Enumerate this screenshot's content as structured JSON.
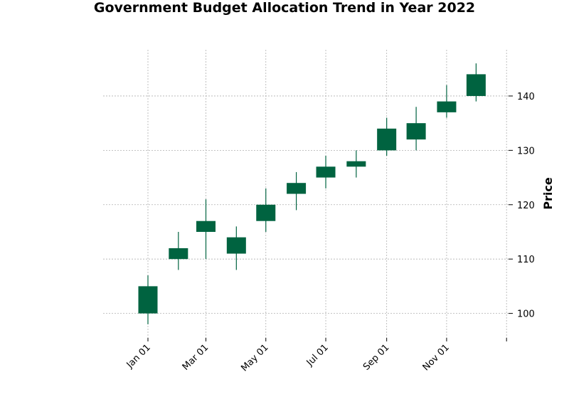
{
  "chart_data": {
    "type": "candlestick",
    "title": "Government Budget Allocation Trend in Year 2022",
    "xlabel": "",
    "ylabel": "Price",
    "grid": true,
    "ylim": [
      95.5,
      148.5
    ],
    "x_tick_labels": [
      "Jan 01",
      "Mar 01",
      "May 01",
      "Jul 01",
      "Sep 01",
      "Nov 01",
      ""
    ],
    "y_ticks": [
      100,
      110,
      120,
      130,
      140
    ],
    "candle_color": "#006340",
    "candles": [
      {
        "date": "2022-01-01",
        "open": 100,
        "high": 107,
        "low": 98,
        "close": 105
      },
      {
        "date": "2022-02-01",
        "open": 110,
        "high": 115,
        "low": 108,
        "close": 112
      },
      {
        "date": "2022-03-01",
        "open": 115,
        "high": 121,
        "low": 110,
        "close": 117
      },
      {
        "date": "2022-04-01",
        "open": 111,
        "high": 116,
        "low": 108,
        "close": 114
      },
      {
        "date": "2022-05-01",
        "open": 117,
        "high": 123,
        "low": 115,
        "close": 120
      },
      {
        "date": "2022-06-01",
        "open": 122,
        "high": 126,
        "low": 119,
        "close": 124
      },
      {
        "date": "2022-07-01",
        "open": 125,
        "high": 129,
        "low": 123,
        "close": 127
      },
      {
        "date": "2022-08-01",
        "open": 127,
        "high": 130,
        "low": 125,
        "close": 128
      },
      {
        "date": "2022-09-01",
        "open": 130,
        "high": 136,
        "low": 129,
        "close": 134
      },
      {
        "date": "2022-10-01",
        "open": 132,
        "high": 138,
        "low": 130,
        "close": 135
      },
      {
        "date": "2022-11-01",
        "open": 137,
        "high": 142,
        "low": 136,
        "close": 139
      },
      {
        "date": "2022-12-01",
        "open": 140,
        "high": 146,
        "low": 139,
        "close": 144
      }
    ]
  }
}
